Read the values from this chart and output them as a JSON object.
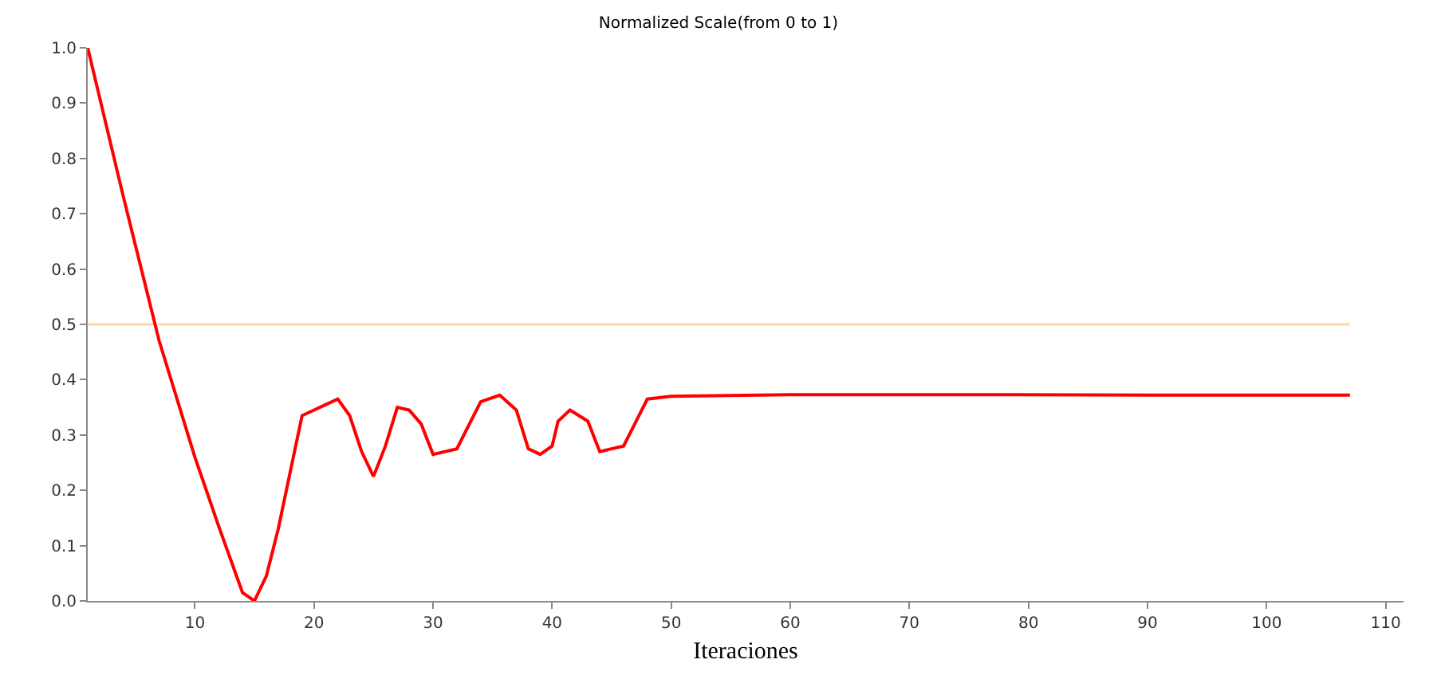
{
  "chart_data": {
    "type": "line",
    "title": "Normalized Scale(from 0 to 1)",
    "xlabel": "Iteraciones",
    "x": [
      1,
      4,
      7,
      10,
      12,
      14,
      15,
      16,
      17,
      19,
      21,
      22,
      23,
      24,
      25,
      26,
      27,
      28,
      29,
      30,
      32,
      34,
      35.6,
      37,
      38,
      39,
      40,
      40.5,
      41.5,
      43,
      44,
      46,
      48,
      50,
      60,
      75,
      90,
      107
    ],
    "series": [
      {
        "color": "#ff0000",
        "values": [
          1.0,
          0.73,
          0.47,
          0.26,
          0.135,
          0.015,
          0.0,
          0.045,
          0.13,
          0.335,
          0.355,
          0.365,
          0.335,
          0.27,
          0.225,
          0.28,
          0.35,
          0.345,
          0.32,
          0.265,
          0.275,
          0.36,
          0.372,
          0.345,
          0.275,
          0.265,
          0.28,
          0.325,
          0.345,
          0.325,
          0.27,
          0.28,
          0.365,
          0.37,
          0.373,
          0.373,
          0.372,
          0.372
        ]
      }
    ],
    "xlim": [
      1,
      111.5
    ],
    "xticks": [
      10,
      20,
      30,
      40,
      50,
      60,
      70,
      80,
      90,
      100,
      110
    ],
    "ylim": [
      0,
      1.0
    ],
    "yticks": [
      {
        "value": 0,
        "label": "0.0"
      },
      0.1,
      0.2,
      0.3,
      0.4,
      0.5,
      0.6,
      0.7,
      0.8,
      0.9,
      {
        "value": 1,
        "label": "1.0"
      }
    ],
    "ref_lines": [
      {
        "axis": "y",
        "value": 0.5,
        "color": "#ffd8a8"
      }
    ],
    "grid": false,
    "marker": "none",
    "line_style": "solid"
  }
}
